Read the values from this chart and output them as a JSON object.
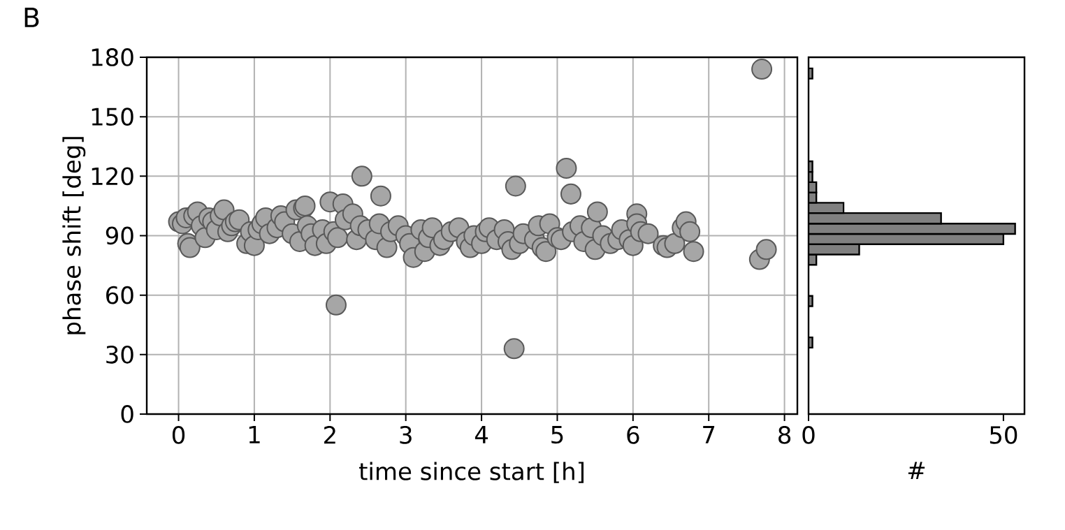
{
  "chart_data": [
    {
      "type": "scatter",
      "annotations": [
        "B"
      ],
      "xlabel": "time since start [h]",
      "ylabel": "phase shift [deg]",
      "x": [
        0.0,
        0.05,
        0.1,
        0.12,
        0.15,
        0.2,
        0.25,
        0.3,
        0.35,
        0.4,
        0.45,
        0.5,
        0.55,
        0.6,
        0.65,
        0.7,
        0.75,
        0.8,
        0.9,
        0.95,
        1.0,
        1.05,
        1.1,
        1.15,
        1.2,
        1.3,
        1.35,
        1.4,
        1.5,
        1.55,
        1.6,
        1.65,
        1.67,
        1.7,
        1.75,
        1.8,
        1.9,
        1.95,
        2.0,
        2.05,
        2.08,
        2.1,
        2.17,
        2.2,
        2.3,
        2.35,
        2.4,
        2.42,
        2.5,
        2.6,
        2.65,
        2.67,
        2.75,
        2.8,
        2.9,
        3.0,
        3.05,
        3.1,
        3.2,
        3.25,
        3.3,
        3.35,
        3.45,
        3.5,
        3.6,
        3.7,
        3.8,
        3.85,
        3.9,
        4.0,
        4.05,
        4.1,
        4.2,
        4.3,
        4.35,
        4.4,
        4.43,
        4.45,
        4.5,
        4.55,
        4.7,
        4.75,
        4.8,
        4.85,
        4.9,
        5.0,
        5.05,
        5.12,
        5.18,
        5.2,
        5.3,
        5.35,
        5.45,
        5.5,
        5.53,
        5.6,
        5.7,
        5.8,
        5.85,
        5.95,
        6.0,
        6.05,
        6.05,
        6.1,
        6.2,
        6.4,
        6.45,
        6.55,
        6.65,
        6.7,
        6.75,
        6.8,
        7.67,
        7.7,
        7.76
      ],
      "values": [
        97,
        96,
        99,
        86,
        84,
        100,
        102,
        95,
        89,
        99,
        97,
        93,
        100,
        103,
        92,
        95,
        97,
        98,
        86,
        92,
        85,
        93,
        96,
        99,
        91,
        94,
        100,
        97,
        91,
        103,
        87,
        104,
        105,
        95,
        91,
        85,
        93,
        86,
        107,
        92,
        55,
        89,
        106,
        98,
        101,
        88,
        95,
        120,
        93,
        88,
        96,
        110,
        84,
        92,
        95,
        90,
        86,
        79,
        93,
        82,
        89,
        94,
        85,
        88,
        92,
        94,
        87,
        84,
        90,
        86,
        92,
        94,
        88,
        93,
        87,
        83,
        33,
        115,
        86,
        91,
        88,
        95,
        84,
        82,
        96,
        89,
        88,
        124,
        111,
        92,
        95,
        87,
        94,
        83,
        102,
        90,
        86,
        88,
        93,
        88,
        85,
        101,
        96,
        92,
        91,
        85,
        84,
        86,
        94,
        97,
        92,
        82,
        78,
        174,
        83
      ],
      "color": "#a6a6a6",
      "marker": "circle",
      "grid": true,
      "xlim": [
        -0.42,
        8.17
      ],
      "ylim": [
        0,
        180
      ],
      "xticks": [
        0,
        1,
        2,
        3,
        4,
        5,
        6,
        7,
        8
      ],
      "yticks": [
        0,
        30,
        60,
        90,
        120,
        150,
        180
      ]
    },
    {
      "type": "histogram",
      "orientation": "horizontal",
      "xlabel": "#",
      "bins": [
        33.5,
        38.7,
        43.9,
        49.2,
        54.4,
        59.6,
        64.8,
        70.0,
        75.3,
        80.5,
        85.7,
        90.9,
        96.1,
        101.4,
        106.6,
        111.8,
        117.0,
        122.2,
        127.5,
        132.7,
        137.9,
        143.1,
        148.3,
        153.6,
        158.8,
        164.0,
        169.2,
        174.4
      ],
      "values": [
        1,
        0,
        0,
        0,
        1,
        0,
        0,
        0,
        2,
        13,
        50,
        53,
        34,
        9,
        2,
        2,
        1,
        1,
        0,
        0,
        0,
        0,
        0,
        0,
        0,
        0,
        1
      ],
      "color": "#808080",
      "xlim": [
        0,
        55.4
      ],
      "ylim": [
        0,
        180
      ],
      "xticks": [
        0,
        50
      ],
      "tick_labels": "x"
    }
  ]
}
